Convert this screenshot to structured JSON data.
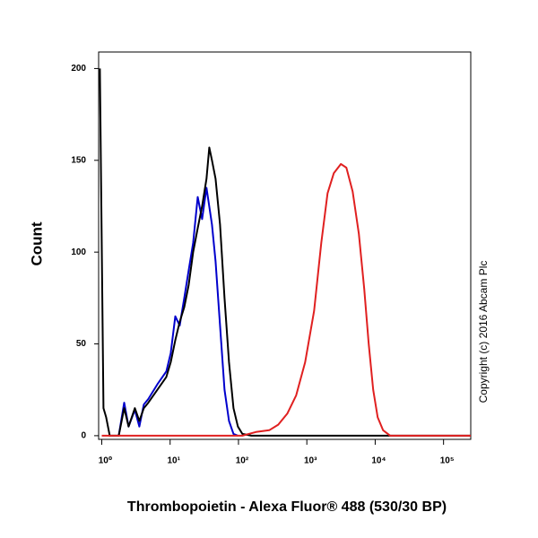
{
  "chart_data": {
    "type": "line",
    "x_label": "Thrombopoietin - Alexa Fluor® 488 (530/30 BP)",
    "y_label": "Count",
    "annotation": "Copyright (c) 2016 Abcam Plc",
    "x_scale": "log",
    "xlim": [
      0.9,
      250000
    ],
    "ylim": [
      -2,
      209
    ],
    "xticks": [
      {
        "value": 1,
        "label": "10⁰"
      },
      {
        "value": 10,
        "label": "10¹"
      },
      {
        "value": 100,
        "label": "10²"
      },
      {
        "value": 1000,
        "label": "10³"
      },
      {
        "value": 10000,
        "label": "10⁴"
      },
      {
        "value": 100000,
        "label": "10⁵"
      }
    ],
    "yticks": [
      0,
      50,
      100,
      150,
      200
    ],
    "series": [
      {
        "color": "#0000cc",
        "x": [
          1.77,
          2.13,
          2.47,
          3.05,
          3.55,
          4.13,
          4.8,
          6.5,
          8.8,
          10.2,
          11.9,
          13.8,
          16.1,
          18.7,
          21.7,
          25.3,
          29.4,
          34.1,
          40.9,
          46.2,
          53.7,
          62.5,
          72.6,
          84.5,
          98
        ],
        "values": [
          0,
          18,
          5,
          14,
          5,
          17,
          20,
          28,
          35,
          45,
          65,
          60,
          75,
          90,
          105,
          130,
          118,
          135,
          115,
          95,
          60,
          25,
          8,
          1,
          0
        ]
      },
      {
        "color": "#000000",
        "x": [
          0.94,
          1.06,
          1.16,
          1.31,
          1.77,
          2.13,
          2.47,
          3.05,
          3.55,
          4.13,
          4.8,
          6.5,
          8.8,
          10.2,
          11.9,
          13.8,
          16.1,
          18.7,
          21.7,
          25.3,
          29.4,
          34.1,
          37.4,
          40.9,
          46.2,
          53.7,
          62.5,
          72.6,
          84.5,
          98,
          114,
          154,
          250000
        ],
        "values": [
          200,
          15,
          10,
          0,
          0,
          15,
          5,
          15,
          8,
          15,
          18,
          25,
          32,
          40,
          52,
          62,
          70,
          82,
          100,
          113,
          125,
          140,
          157,
          150,
          140,
          115,
          75,
          40,
          15,
          5,
          1,
          0,
          0
        ]
      },
      {
        "color": "#e02020",
        "x": [
          1,
          114,
          180,
          282,
          382,
          517,
          698,
          944,
          1277,
          1625,
          2009,
          2479,
          3155,
          3784,
          4677,
          5770,
          6918,
          8043,
          9351,
          10870,
          13030,
          16590,
          250000
        ],
        "values": [
          0,
          0,
          2,
          3,
          6,
          12,
          22,
          40,
          68,
          105,
          132,
          143,
          148,
          146,
          133,
          110,
          80,
          50,
          25,
          10,
          3,
          0,
          0
        ]
      }
    ]
  }
}
